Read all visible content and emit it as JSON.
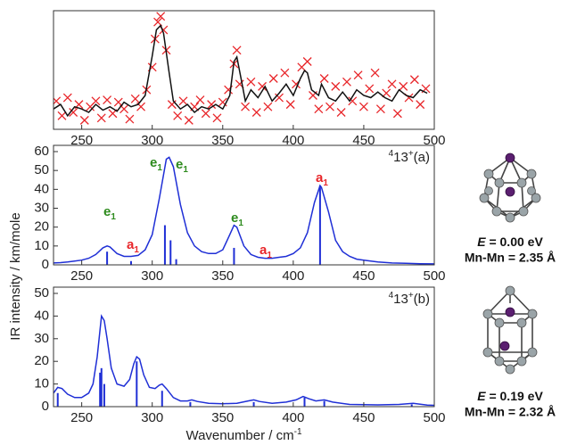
{
  "chart_data": [
    {
      "type": "line",
      "xlim": [
        230,
        500
      ],
      "xticks": [
        250,
        300,
        350,
        400,
        450,
        500
      ],
      "ylim": [
        0,
        105
      ],
      "series": [
        {
          "style": "markers",
          "color": "#e8262a",
          "x": [
            232,
            236,
            240,
            244,
            248,
            252,
            256,
            260,
            264,
            268,
            272,
            276,
            280,
            284,
            288,
            292,
            296,
            300,
            302,
            304,
            306,
            308,
            310,
            314,
            318,
            322,
            326,
            330,
            334,
            338,
            342,
            346,
            350,
            354,
            358,
            360,
            362,
            366,
            370,
            374,
            378,
            382,
            386,
            390,
            394,
            398,
            402,
            406,
            410,
            414,
            418,
            422,
            426,
            430,
            434,
            438,
            442,
            446,
            450,
            454,
            458,
            462,
            466,
            470,
            474,
            478,
            482,
            486,
            490,
            494
          ],
          "values": [
            25,
            12,
            28,
            15,
            22,
            8,
            20,
            25,
            10,
            26,
            14,
            24,
            18,
            9,
            27,
            20,
            35,
            55,
            80,
            95,
            100,
            88,
            70,
            22,
            12,
            25,
            8,
            20,
            26,
            14,
            22,
            10,
            24,
            35,
            58,
            70,
            40,
            20,
            42,
            15,
            38,
            20,
            45,
            28,
            50,
            22,
            40,
            55,
            60,
            30,
            18,
            45,
            20,
            38,
            15,
            42,
            25,
            48,
            20,
            36,
            50,
            18,
            32,
            40,
            14,
            38,
            28,
            44,
            22,
            36
          ]
        },
        {
          "style": "line",
          "color": "#111111",
          "x": [
            230,
            235,
            240,
            245,
            250,
            255,
            260,
            265,
            270,
            275,
            280,
            285,
            290,
            295,
            300,
            303,
            306,
            308,
            312,
            315,
            320,
            325,
            330,
            335,
            340,
            345,
            350,
            355,
            358,
            360,
            363,
            366,
            370,
            375,
            380,
            385,
            390,
            395,
            400,
            405,
            408,
            410,
            413,
            418,
            420,
            425,
            430,
            435,
            440,
            445,
            450,
            455,
            460,
            465,
            470,
            475,
            480,
            485,
            490,
            495
          ],
          "values": [
            18,
            22,
            12,
            20,
            18,
            15,
            22,
            17,
            20,
            16,
            24,
            20,
            22,
            30,
            65,
            88,
            92,
            85,
            50,
            25,
            18,
            22,
            15,
            20,
            18,
            22,
            18,
            30,
            60,
            64,
            45,
            25,
            35,
            28,
            38,
            25,
            32,
            40,
            30,
            45,
            52,
            50,
            35,
            30,
            40,
            28,
            25,
            33,
            25,
            35,
            30,
            28,
            33,
            28,
            25,
            35,
            30,
            28,
            35,
            32
          ]
        }
      ]
    },
    {
      "type": "line",
      "xlim": [
        230,
        500
      ],
      "xticks": [
        250,
        300,
        350,
        400,
        450,
        500
      ],
      "ylim": [
        0,
        60
      ],
      "yticks": [
        0,
        10,
        20,
        30,
        40,
        50,
        60
      ],
      "y_label": "IR intensity / km/mole",
      "panel_label": {
        "pre": "4",
        "main": "13",
        "sup": "+",
        "post": "(a)"
      },
      "annotations": [
        {
          "text": "e",
          "sub": "1",
          "color": "#2e8b1e"
        },
        {
          "text": "a",
          "sub": "1",
          "color": "#e8262a"
        },
        {
          "text": "e",
          "sub": "1",
          "color": "#2e8b1e"
        },
        {
          "text": "e",
          "sub": "1",
          "color": "#2e8b1e"
        },
        {
          "text": "e",
          "sub": "1",
          "color": "#2e8b1e"
        },
        {
          "text": "a",
          "sub": "1",
          "color": "#e8262a"
        },
        {
          "text": "a",
          "sub": "1",
          "color": "#e8262a"
        }
      ],
      "series": [
        {
          "style": "line",
          "color": "#1f2fd6",
          "x": [
            230,
            235,
            240,
            245,
            250,
            255,
            260,
            265,
            268,
            270,
            275,
            280,
            285,
            290,
            295,
            300,
            305,
            310,
            312,
            315,
            320,
            325,
            330,
            335,
            340,
            345,
            350,
            355,
            358,
            360,
            365,
            370,
            375,
            380,
            385,
            390,
            395,
            400,
            405,
            410,
            415,
            419,
            420,
            425,
            430,
            435,
            440,
            445,
            450,
            460,
            470,
            480,
            490,
            500
          ],
          "values": [
            1,
            1.2,
            1.5,
            2,
            2.5,
            3.5,
            5.5,
            9,
            10,
            9.5,
            6,
            4.5,
            4.5,
            5,
            8,
            16,
            35,
            56,
            57,
            52,
            32,
            17,
            10,
            7,
            6,
            6,
            8,
            16,
            21,
            20,
            10,
            5.5,
            4,
            3.5,
            3.5,
            4,
            4.5,
            6,
            9,
            17,
            33,
            42,
            41,
            28,
            13,
            7,
            4.5,
            3,
            2.5,
            1.5,
            1,
            0.8,
            0.6,
            0.5
          ]
        },
        {
          "style": "sticks",
          "color": "#1f2fd6",
          "x": [
            268,
            285,
            309,
            313,
            317,
            358,
            419
          ],
          "values": [
            7,
            2,
            21,
            13,
            3,
            9,
            42
          ]
        }
      ]
    },
    {
      "type": "line",
      "xlim": [
        230,
        500
      ],
      "xticks": [
        250,
        300,
        350,
        400,
        450,
        500
      ],
      "ylim": [
        0,
        50
      ],
      "yticks": [
        0,
        10,
        20,
        30,
        40,
        50
      ],
      "x_label": "Wavenumber / cm",
      "x_label_sup": "-1",
      "panel_label": {
        "pre": "4",
        "main": "13",
        "sup": "+",
        "post": "(b)"
      },
      "series": [
        {
          "style": "line",
          "color": "#1f2fd6",
          "x": [
            230,
            233,
            236,
            240,
            245,
            250,
            255,
            258,
            261,
            264,
            266,
            268,
            271,
            275,
            280,
            284,
            287,
            289,
            291,
            294,
            298,
            302,
            305,
            307,
            310,
            315,
            320,
            325,
            328,
            332,
            340,
            350,
            360,
            368,
            372,
            376,
            385,
            395,
            402,
            407,
            411,
            416,
            422,
            428,
            440,
            460,
            475,
            485,
            495,
            500
          ],
          "values": [
            6,
            8.5,
            8,
            5.5,
            4,
            4,
            6,
            10,
            22,
            40,
            38,
            30,
            17,
            10,
            9,
            12,
            19,
            22,
            21,
            14,
            8.5,
            8,
            9.5,
            10,
            8,
            4,
            2.5,
            2.5,
            3,
            2.3,
            1.5,
            1.3,
            1.5,
            2.5,
            3,
            2.3,
            1.5,
            2,
            3,
            4.5,
            3.5,
            2.5,
            3,
            2,
            1,
            0.8,
            1,
            1.5,
            0.7,
            0.6
          ]
        },
        {
          "style": "sticks",
          "color": "#1f2fd6",
          "x": [
            233,
            263,
            264,
            266,
            289,
            307,
            327,
            372,
            408,
            422,
            484
          ],
          "values": [
            6,
            15,
            17,
            10,
            20,
            7,
            2,
            2,
            4,
            2.5,
            1
          ]
        }
      ]
    }
  ],
  "structures": [
    {
      "energy_symbol": "E",
      "energy_text": " = 0.00 eV",
      "distance": "Mn-Mn = 2.35 Å"
    },
    {
      "energy_symbol": "E",
      "energy_text": " = 0.19 eV",
      "distance": "Mn-Mn = 2.32 Å"
    }
  ]
}
